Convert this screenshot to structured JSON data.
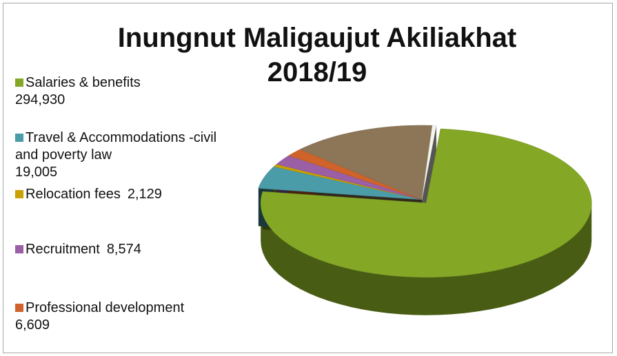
{
  "chart_data": {
    "type": "pie",
    "title": "Inungnut Maligaujut Akiliakhat 2018/19",
    "categories": [
      "Salaries & benefits",
      "Travel & Accommodations -civil and poverty law",
      "Relocation fees",
      "Recruitment",
      "Professional development",
      null,
      null
    ],
    "values": [
      294930,
      19005,
      2129,
      8574,
      6609,
      55000,
      1500
    ],
    "value_labels": [
      "294,930",
      "19,005",
      "2,129",
      "8,574",
      "6,609",
      null,
      null
    ],
    "colors": [
      "#84a825",
      "#4a9ca8",
      "#c9a100",
      "#9b5fa5",
      "#d0632a",
      "#8d7657",
      "#f4f6ee"
    ]
  }
}
